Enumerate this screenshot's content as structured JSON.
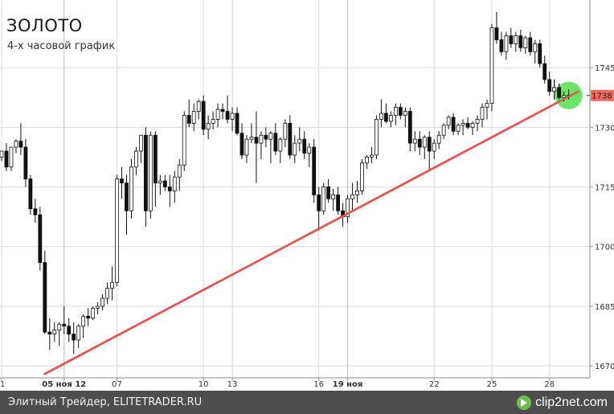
{
  "title": "ЗОЛОТО",
  "subtitle": "4-х часовой график",
  "footer": {
    "source": "Элитный Трейдер, ELITETRADER.RU",
    "brand": "clip2net.com"
  },
  "colors": {
    "trendline": "#e85454",
    "price_marker": "#ef6b62",
    "highlight": "#5fe35c",
    "footer_bg": "#4d4d4d"
  },
  "chart_data": {
    "type": "candlestick",
    "ylim": [
      1667,
      1762
    ],
    "yticks": [
      1670,
      1685,
      1700,
      1715,
      1730,
      1745
    ],
    "grid": true,
    "x_ticks": [
      {
        "label": "1",
        "index": 0,
        "bold": false
      },
      {
        "label": "05 ноя 12",
        "index": 13,
        "bold": true
      },
      {
        "label": "07",
        "index": 24,
        "bold": false
      },
      {
        "label": "10",
        "index": 42,
        "bold": false
      },
      {
        "label": "13",
        "index": 48,
        "bold": false
      },
      {
        "label": "16",
        "index": 66,
        "bold": false
      },
      {
        "label": "19 ноя",
        "index": 72,
        "bold": true
      },
      {
        "label": "22",
        "index": 90,
        "bold": false
      },
      {
        "label": "25",
        "index": 102,
        "bold": false
      },
      {
        "label": "28",
        "index": 114,
        "bold": false
      }
    ],
    "last_price": 1738,
    "trendline": {
      "from": [
        9,
        1668
      ],
      "to": [
        120,
        1739
      ]
    },
    "highlight_point": {
      "index": 118,
      "value": 1738
    },
    "candles": [
      [
        1722.5,
        1724.0,
        1721.5,
        1724.0
      ],
      [
        1724.0,
        1726.0,
        1719.0,
        1720.0
      ],
      [
        1720.0,
        1725.0,
        1719.0,
        1725.0
      ],
      [
        1725.0,
        1727.0,
        1723.5,
        1726.5
      ],
      [
        1726.5,
        1731.0,
        1723.0,
        1725.0
      ],
      [
        1725.0,
        1727.0,
        1715.0,
        1717.0
      ],
      [
        1717.0,
        1718.0,
        1708.0,
        1709.5
      ],
      [
        1709.5,
        1712.0,
        1706.0,
        1708.0
      ],
      [
        1708.0,
        1710.0,
        1694.0,
        1696.0
      ],
      [
        1696.0,
        1699.0,
        1678.0,
        1678.5
      ],
      [
        1678.5,
        1682.0,
        1674.0,
        1678.0
      ],
      [
        1678.0,
        1681.0,
        1676.0,
        1679.0
      ],
      [
        1679.0,
        1681.0,
        1675.0,
        1680.5
      ],
      [
        1680.5,
        1685.0,
        1678.0,
        1680.0
      ],
      [
        1680.0,
        1682.0,
        1676.0,
        1678.0
      ],
      [
        1678.0,
        1681.0,
        1673.0,
        1676.5
      ],
      [
        1676.5,
        1680.5,
        1674.5,
        1680.0
      ],
      [
        1680.0,
        1683.0,
        1677.0,
        1682.5
      ],
      [
        1682.5,
        1684.5,
        1680.0,
        1682.0
      ],
      [
        1682.0,
        1685.0,
        1681.5,
        1684.5
      ],
      [
        1684.5,
        1686.0,
        1683.0,
        1685.0
      ],
      [
        1685.0,
        1688.0,
        1684.0,
        1687.0
      ],
      [
        1687.0,
        1691.0,
        1685.5,
        1689.5
      ],
      [
        1689.5,
        1695.0,
        1686.5,
        1691.0
      ],
      [
        1691.0,
        1718.0,
        1690.0,
        1717.0
      ],
      [
        1717.0,
        1720.0,
        1712.0,
        1716.0
      ],
      [
        1716.0,
        1718.0,
        1703.0,
        1709.0
      ],
      [
        1709.0,
        1722.0,
        1707.0,
        1720.0
      ],
      [
        1720.0,
        1725.0,
        1718.0,
        1724.0
      ],
      [
        1724.0,
        1728.0,
        1721.0,
        1728.0
      ],
      [
        1728.0,
        1730.0,
        1705.0,
        1709.0
      ],
      [
        1709.0,
        1729.0,
        1707.0,
        1728.0
      ],
      [
        1728.0,
        1729.0,
        1710.0,
        1716.0
      ],
      [
        1716.0,
        1718.0,
        1713.0,
        1716.5
      ],
      [
        1716.5,
        1718.0,
        1714.0,
        1715.0
      ],
      [
        1715.0,
        1718.0,
        1710.0,
        1714.0
      ],
      [
        1714.0,
        1719.0,
        1711.0,
        1717.5
      ],
      [
        1717.5,
        1722.0,
        1714.0,
        1720.5
      ],
      [
        1720.5,
        1734.0,
        1719.0,
        1733.0
      ],
      [
        1733.0,
        1737.0,
        1730.0,
        1731.0
      ],
      [
        1731.0,
        1736.0,
        1729.0,
        1734.0
      ],
      [
        1734.0,
        1737.0,
        1732.0,
        1736.5
      ],
      [
        1736.5,
        1738.0,
        1728.0,
        1729.5
      ],
      [
        1729.5,
        1733.0,
        1727.0,
        1731.0
      ],
      [
        1731.0,
        1734.0,
        1729.5,
        1732.0
      ],
      [
        1732.0,
        1736.0,
        1730.0,
        1734.5
      ],
      [
        1734.5,
        1736.0,
        1732.0,
        1734.0
      ],
      [
        1734.0,
        1738.0,
        1731.0,
        1732.0
      ],
      [
        1732.0,
        1735.0,
        1729.0,
        1733.5
      ],
      [
        1733.5,
        1735.0,
        1728.0,
        1728.5
      ],
      [
        1728.5,
        1731.0,
        1722.0,
        1723.0
      ],
      [
        1723.0,
        1728.0,
        1721.0,
        1727.0
      ],
      [
        1727.0,
        1731.0,
        1726.0,
        1727.5
      ],
      [
        1727.5,
        1734.0,
        1716.0,
        1726.0
      ],
      [
        1726.0,
        1729.0,
        1722.0,
        1728.0
      ],
      [
        1728.0,
        1730.0,
        1725.0,
        1727.0
      ],
      [
        1727.0,
        1729.0,
        1721.0,
        1728.5
      ],
      [
        1728.5,
        1731.0,
        1723.0,
        1724.0
      ],
      [
        1724.0,
        1727.5,
        1721.0,
        1727.0
      ],
      [
        1727.0,
        1732.0,
        1725.0,
        1731.0
      ],
      [
        1731.0,
        1733.0,
        1722.0,
        1723.0
      ],
      [
        1723.0,
        1728.0,
        1721.0,
        1726.0
      ],
      [
        1726.0,
        1730.0,
        1724.0,
        1727.0
      ],
      [
        1727.0,
        1729.0,
        1722.0,
        1723.5
      ],
      [
        1723.5,
        1726.0,
        1720.0,
        1725.0
      ],
      [
        1725.0,
        1727.0,
        1711.0,
        1713.0
      ],
      [
        1713.0,
        1715.0,
        1704.0,
        1709.0
      ],
      [
        1709.0,
        1716.0,
        1708.0,
        1715.0
      ],
      [
        1715.0,
        1717.0,
        1711.0,
        1712.0
      ],
      [
        1712.0,
        1714.5,
        1709.0,
        1713.0
      ],
      [
        1713.0,
        1715.0,
        1708.0,
        1709.0
      ],
      [
        1709.0,
        1711.0,
        1705.0,
        1707.5
      ],
      [
        1707.5,
        1713.0,
        1706.0,
        1712.0
      ],
      [
        1712.0,
        1716.0,
        1709.0,
        1713.0
      ],
      [
        1713.0,
        1716.5,
        1711.0,
        1714.0
      ],
      [
        1714.0,
        1722.0,
        1713.0,
        1721.0
      ],
      [
        1721.0,
        1723.0,
        1719.5,
        1722.5
      ],
      [
        1722.5,
        1725.0,
        1721.0,
        1723.0
      ],
      [
        1723.0,
        1733.0,
        1722.0,
        1732.0
      ],
      [
        1732.0,
        1737.0,
        1730.0,
        1733.5
      ],
      [
        1733.5,
        1736.0,
        1731.0,
        1731.5
      ],
      [
        1731.5,
        1734.0,
        1730.0,
        1733.0
      ],
      [
        1733.0,
        1736.0,
        1730.5,
        1735.0
      ],
      [
        1735.0,
        1736.0,
        1732.0,
        1733.0
      ],
      [
        1733.0,
        1735.0,
        1730.0,
        1734.0
      ],
      [
        1734.0,
        1735.0,
        1724.0,
        1726.0
      ],
      [
        1726.0,
        1729.0,
        1724.0,
        1727.0
      ],
      [
        1727.0,
        1729.0,
        1723.0,
        1725.0
      ],
      [
        1725.0,
        1728.0,
        1722.0,
        1727.5
      ],
      [
        1727.5,
        1729.0,
        1719.0,
        1724.0
      ],
      [
        1724.0,
        1727.0,
        1722.0,
        1726.0
      ],
      [
        1726.0,
        1729.0,
        1724.5,
        1728.0
      ],
      [
        1728.0,
        1731.0,
        1727.0,
        1730.5
      ],
      [
        1730.5,
        1733.0,
        1729.5,
        1732.5
      ],
      [
        1732.5,
        1733.5,
        1728.0,
        1729.0
      ],
      [
        1729.0,
        1731.0,
        1728.0,
        1730.5
      ],
      [
        1730.5,
        1732.0,
        1728.0,
        1731.0
      ],
      [
        1731.0,
        1732.5,
        1729.5,
        1730.0
      ],
      [
        1730.0,
        1731.5,
        1728.0,
        1731.0
      ],
      [
        1731.0,
        1733.0,
        1729.0,
        1732.0
      ],
      [
        1732.0,
        1736.0,
        1730.0,
        1735.0
      ],
      [
        1735.0,
        1737.0,
        1732.0,
        1736.0
      ],
      [
        1736.0,
        1756.0,
        1734.0,
        1755.0
      ],
      [
        1755.0,
        1759.0,
        1751.0,
        1752.0
      ],
      [
        1752.0,
        1754.0,
        1748.0,
        1749.0
      ],
      [
        1749.0,
        1754.0,
        1747.0,
        1753.0
      ],
      [
        1753.0,
        1755.0,
        1750.0,
        1751.0
      ],
      [
        1751.0,
        1754.0,
        1749.0,
        1753.0
      ],
      [
        1753.0,
        1754.5,
        1749.0,
        1750.0
      ],
      [
        1750.0,
        1753.0,
        1748.5,
        1752.5
      ],
      [
        1752.5,
        1754.0,
        1748.0,
        1749.0
      ],
      [
        1749.0,
        1752.0,
        1746.0,
        1751.0
      ],
      [
        1751.0,
        1752.0,
        1745.0,
        1746.0
      ],
      [
        1746.0,
        1748.0,
        1741.0,
        1742.0
      ],
      [
        1742.0,
        1744.0,
        1738.0,
        1739.0
      ],
      [
        1739.0,
        1742.0,
        1737.0,
        1740.0
      ],
      [
        1740.0,
        1741.0,
        1737.0,
        1737.5
      ],
      [
        1737.5,
        1739.0,
        1736.5,
        1738.0
      ],
      [
        1738.0,
        1739.5,
        1737.0,
        1738.0
      ]
    ]
  }
}
